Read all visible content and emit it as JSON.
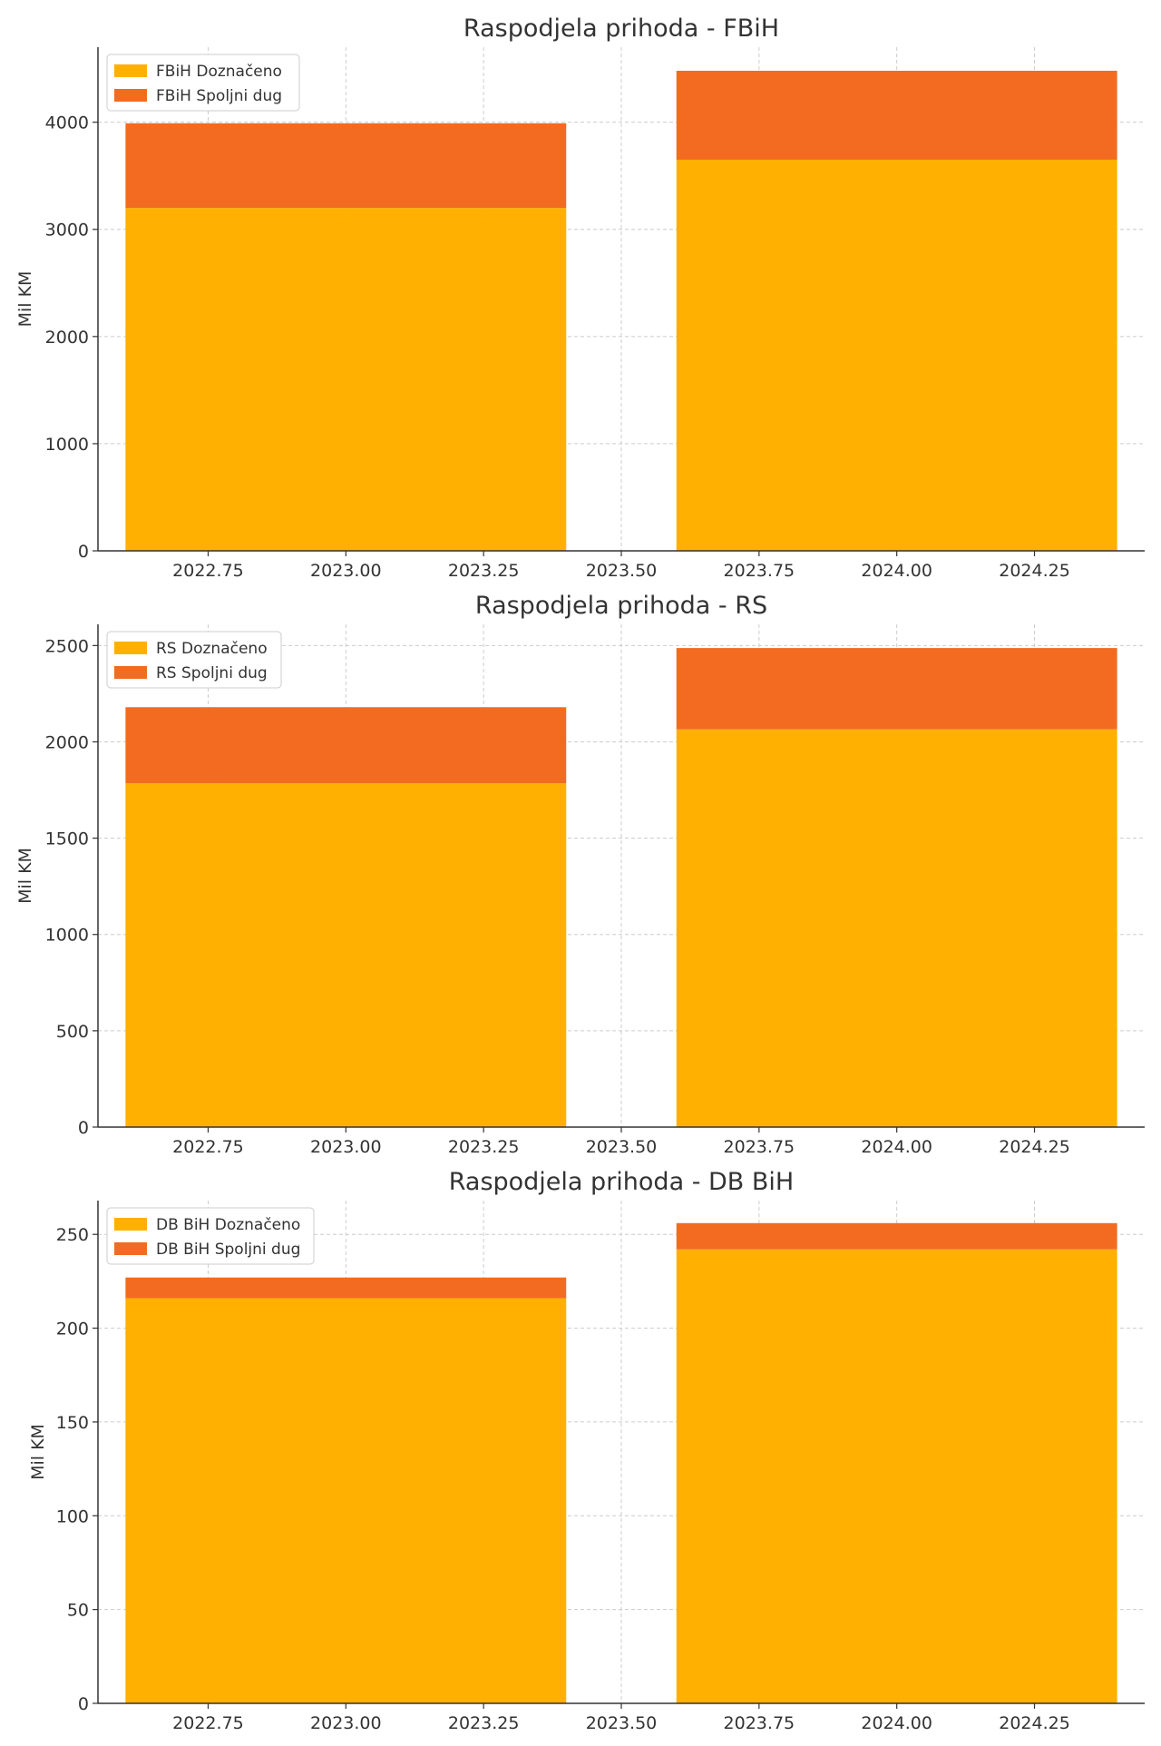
{
  "colors": {
    "doznaceno": "#FFB000",
    "spoljni_dug": "#F26B21"
  },
  "chart_data": [
    {
      "type": "bar",
      "stacked": true,
      "title": "Raspodjela prihoda - FBiH",
      "xlabel": "",
      "ylabel": "Mil KM",
      "x": [
        2023,
        2024
      ],
      "bar_width": 0.8,
      "xlim": [
        2022.55,
        2024.45
      ],
      "ylim": [
        0,
        4700
      ],
      "xticks": [
        2022.75,
        2023.0,
        2023.25,
        2023.5,
        2023.75,
        2024.0,
        2024.25
      ],
      "xtick_labels": [
        "2022.75",
        "2023.00",
        "2023.25",
        "2023.50",
        "2023.75",
        "2024.00",
        "2024.25"
      ],
      "yticks": [
        0,
        1000,
        2000,
        3000,
        4000
      ],
      "ytick_labels": [
        "0",
        "1000",
        "2000",
        "3000",
        "4000"
      ],
      "legend_position": "top-left",
      "grid": true,
      "series": [
        {
          "name": "FBiH Doznačeno",
          "color_key": "doznaceno",
          "values": [
            3200,
            3650
          ]
        },
        {
          "name": "FBiH Spoljni dug",
          "color_key": "spoljni_dug",
          "values": [
            790,
            830
          ]
        }
      ]
    },
    {
      "type": "bar",
      "stacked": true,
      "title": "Raspodjela prihoda - RS",
      "xlabel": "",
      "ylabel": "Mil KM",
      "x": [
        2023,
        2024
      ],
      "bar_width": 0.8,
      "xlim": [
        2022.55,
        2024.45
      ],
      "ylim": [
        0,
        2610
      ],
      "xticks": [
        2022.75,
        2023.0,
        2023.25,
        2023.5,
        2023.75,
        2024.0,
        2024.25
      ],
      "xtick_labels": [
        "2022.75",
        "2023.00",
        "2023.25",
        "2023.50",
        "2023.75",
        "2024.00",
        "2024.25"
      ],
      "yticks": [
        0,
        500,
        1000,
        1500,
        2000,
        2500
      ],
      "ytick_labels": [
        "0",
        "500",
        "1000",
        "1500",
        "2000",
        "2500"
      ],
      "legend_position": "top-left",
      "grid": true,
      "series": [
        {
          "name": "RS Doznačeno",
          "color_key": "doznaceno",
          "values": [
            1785,
            2065
          ]
        },
        {
          "name": "RS Spoljni dug",
          "color_key": "spoljni_dug",
          "values": [
            395,
            422
          ]
        }
      ]
    },
    {
      "type": "bar",
      "stacked": true,
      "title": "Raspodjela prihoda - DB BiH",
      "xlabel": "",
      "ylabel": "Mil KM",
      "x": [
        2023,
        2024
      ],
      "bar_width": 0.8,
      "xlim": [
        2022.55,
        2024.45
      ],
      "ylim": [
        0,
        268
      ],
      "xticks": [
        2022.75,
        2023.0,
        2023.25,
        2023.5,
        2023.75,
        2024.0,
        2024.25
      ],
      "xtick_labels": [
        "2022.75",
        "2023.00",
        "2023.25",
        "2023.50",
        "2023.75",
        "2024.00",
        "2024.25"
      ],
      "yticks": [
        0,
        50,
        100,
        150,
        200,
        250
      ],
      "ytick_labels": [
        "0",
        "50",
        "100",
        "150",
        "200",
        "250"
      ],
      "legend_position": "top-left",
      "grid": true,
      "series": [
        {
          "name": "DB BiH Doznačeno",
          "color_key": "doznaceno",
          "values": [
            216,
            242
          ]
        },
        {
          "name": "DB BiH Spoljni dug",
          "color_key": "spoljni_dug",
          "values": [
            11,
            14
          ]
        }
      ]
    }
  ]
}
